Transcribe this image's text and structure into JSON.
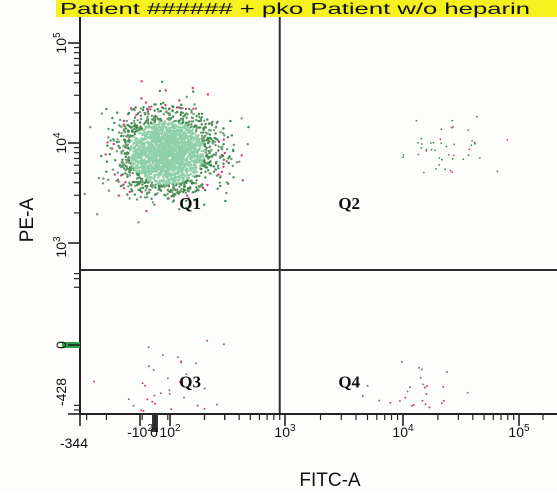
{
  "header_text": "Patient ###### + pko Patient w/o heparin",
  "colors": {
    "header_highlight": "#f5f11e",
    "frame": "#222222",
    "gate": "#2e2e2e",
    "population_main": "#8fd0a8",
    "population_dark": "#3a8a4a",
    "event_pink": "#d0407a",
    "axis_marker": "#2aa04a"
  },
  "chart_data": {
    "type": "scatter",
    "title": "",
    "xlabel": "FITC-A",
    "ylabel": "PE-A",
    "x_scale": "biexponential",
    "y_scale": "biexponential",
    "xlim": [
      -344,
      300000
    ],
    "ylim": [
      -428,
      200000
    ],
    "x_ticks": [
      {
        "label": "-344",
        "value": -344
      },
      {
        "label": "-10^2",
        "value": -100
      },
      {
        "label": "0",
        "value": 0
      },
      {
        "label": "10^2",
        "value": 100
      },
      {
        "label": "10^3",
        "value": 1000
      },
      {
        "label": "10^4",
        "value": 10000
      },
      {
        "label": "10^5",
        "value": 100000
      }
    ],
    "y_ticks": [
      {
        "label": "-428",
        "value": -428
      },
      {
        "label": "0",
        "value": 0
      },
      {
        "label": "10^3",
        "value": 1000
      },
      {
        "label": "10^4",
        "value": 10000
      },
      {
        "label": "10^5",
        "value": 100000
      }
    ],
    "quadrant_gate": {
      "x": 900,
      "y": 400
    },
    "quadrants": [
      {
        "name": "Q1",
        "label_at": {
          "x": 150,
          "y": 2200
        }
      },
      {
        "name": "Q2",
        "label_at": {
          "x": 3500,
          "y": 2200
        }
      },
      {
        "name": "Q3",
        "label_at": {
          "x": 150,
          "y": -40
        }
      },
      {
        "name": "Q4",
        "label_at": {
          "x": 3500,
          "y": -40
        }
      }
    ],
    "populations": [
      {
        "quadrant": "Q1",
        "center": {
          "x": 40,
          "y": 8000
        },
        "events": 2600
      },
      {
        "quadrant": "Q2",
        "center": {
          "x": 25000,
          "y": 9000
        },
        "events": 45
      },
      {
        "quadrant": "Q3",
        "center": {
          "x": 80,
          "y": -30
        },
        "events": 40
      },
      {
        "quadrant": "Q4",
        "center": {
          "x": 12000,
          "y": -50
        },
        "events": 28
      }
    ],
    "grid": false
  }
}
